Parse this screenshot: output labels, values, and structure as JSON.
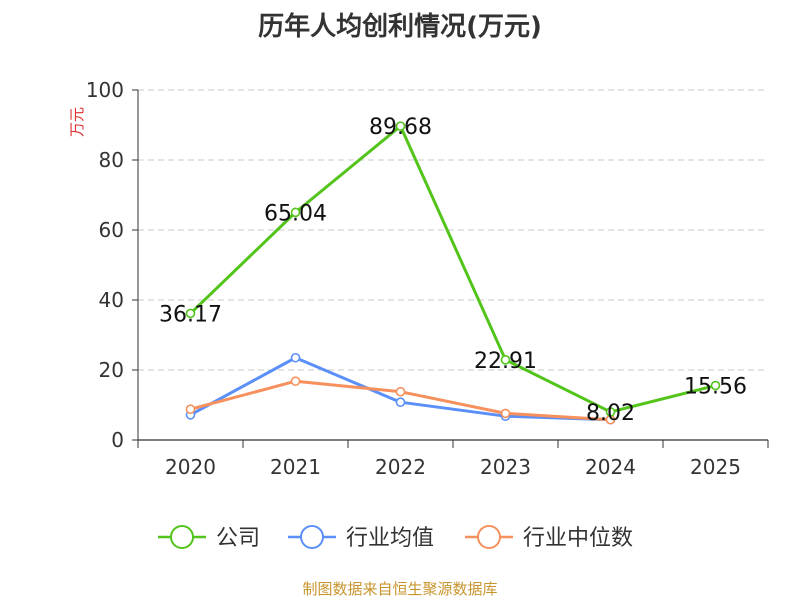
{
  "chart_data": {
    "type": "line",
    "title": "历年人均创利情况(万元)",
    "ylabel": "万元",
    "xlabel": "",
    "ylim": [
      0,
      100
    ],
    "yticks": [
      0,
      20,
      40,
      60,
      80,
      100
    ],
    "categories": [
      "2020",
      "2021",
      "2022",
      "2023",
      "2024",
      "2025"
    ],
    "grid": true,
    "legend_position": "bottom",
    "series": [
      {
        "name": "公司",
        "color": "#52c41a",
        "values": [
          36.17,
          65.04,
          89.68,
          22.91,
          8.02,
          15.56
        ],
        "labels": [
          "36.17",
          "65.04",
          "89.68",
          "22.91",
          "8.02",
          "15.56"
        ]
      },
      {
        "name": "行业均值",
        "color": "#5b8ff9",
        "values": [
          7.2,
          23.5,
          10.8,
          6.8,
          5.8,
          null
        ]
      },
      {
        "name": "行业中位数",
        "color": "#f6905c",
        "values": [
          8.8,
          16.8,
          13.8,
          7.6,
          5.8,
          null
        ]
      }
    ]
  },
  "footer": {
    "source": "制图数据来自恒生聚源数据库"
  }
}
